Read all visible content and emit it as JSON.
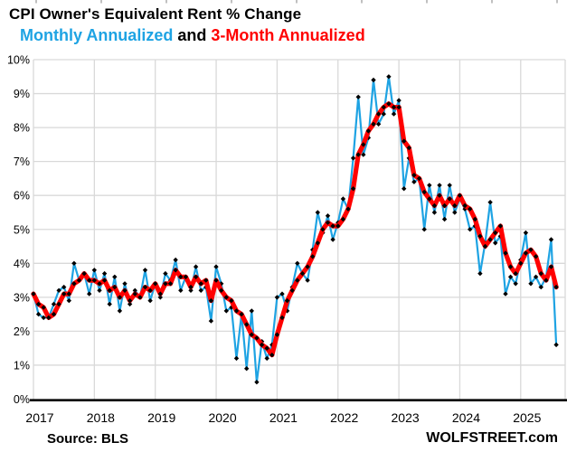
{
  "header": {
    "title": "CPI Owner's Equivalent Rent % Change",
    "subtitle": {
      "series1": "Monthly Annualized",
      "conjunction": "and",
      "series2": "3-Month Annualized"
    }
  },
  "footer": {
    "source": "Source: BLS",
    "brand": "WOLFSTREET.com"
  },
  "colors": {
    "monthly_line": "#1ea3e3",
    "three_month_line": "#ff0000",
    "marker": "#000000",
    "grid": "#d9d9d9",
    "axis": "#000000",
    "top_ticks": "#a6a6a6"
  },
  "chart_data": {
    "type": "line",
    "title": "CPI Owner's Equivalent Rent % Change",
    "x_unit": "month",
    "x_start": "2017-01",
    "x_end": "2025-08",
    "x_tick_labels": [
      "2017",
      "2018",
      "2019",
      "2020",
      "2021",
      "2022",
      "2023",
      "2024",
      "2025"
    ],
    "y_tick_labels": [
      "0%",
      "1%",
      "2%",
      "3%",
      "4%",
      "5%",
      "6%",
      "7%",
      "8%",
      "9%",
      "10%"
    ],
    "ylim": [
      0,
      10
    ],
    "grid": true,
    "legend_position": "in-subtitle",
    "series": [
      {
        "name": "Monthly Annualized",
        "color": "#1ea3e3",
        "marker": "diamond",
        "values": [
          3.1,
          2.5,
          2.4,
          2.4,
          2.8,
          3.2,
          3.3,
          2.9,
          4.0,
          3.5,
          3.7,
          3.1,
          3.8,
          3.2,
          3.7,
          2.8,
          3.6,
          2.6,
          3.4,
          2.8,
          3.2,
          3.0,
          3.8,
          2.9,
          3.4,
          3.0,
          3.7,
          3.5,
          4.1,
          3.2,
          3.6,
          3.2,
          3.9,
          3.2,
          3.3,
          2.3,
          3.9,
          3.4,
          2.6,
          2.7,
          1.2,
          2.5,
          0.9,
          2.6,
          0.5,
          1.7,
          1.2,
          1.6,
          3.0,
          3.1,
          2.6,
          3.3,
          4.0,
          3.7,
          3.5,
          4.4,
          5.5,
          4.9,
          5.4,
          4.7,
          5.2,
          5.9,
          5.6,
          7.1,
          8.9,
          7.2,
          7.7,
          9.4,
          8.1,
          8.4,
          9.5,
          8.4,
          8.8,
          6.2,
          7.1,
          6.4,
          6.5,
          5.0,
          6.3,
          5.5,
          6.3,
          5.3,
          6.3,
          5.5,
          5.9,
          5.6,
          5.0,
          5.1,
          3.7,
          4.6,
          5.8,
          4.6,
          4.8,
          3.1,
          3.6,
          3.4,
          4.1,
          4.9,
          3.4,
          3.6,
          3.3,
          3.6,
          4.7,
          1.6
        ]
      },
      {
        "name": "3-Month Annualized",
        "color": "#ff0000",
        "marker": "diamond",
        "values": [
          3.1,
          2.8,
          2.7,
          2.4,
          2.5,
          2.8,
          3.1,
          3.1,
          3.4,
          3.5,
          3.7,
          3.5,
          3.5,
          3.4,
          3.5,
          3.2,
          3.3,
          3.0,
          3.2,
          2.9,
          3.1,
          3.0,
          3.3,
          3.2,
          3.4,
          3.1,
          3.4,
          3.4,
          3.8,
          3.6,
          3.6,
          3.3,
          3.6,
          3.4,
          3.5,
          2.9,
          3.5,
          3.2,
          3.0,
          2.9,
          2.6,
          2.5,
          2.2,
          1.9,
          1.8,
          1.6,
          1.5,
          1.3,
          1.9,
          2.4,
          2.9,
          3.2,
          3.5,
          3.7,
          3.9,
          4.2,
          4.6,
          5.0,
          5.2,
          5.1,
          5.1,
          5.3,
          5.6,
          6.2,
          7.2,
          7.5,
          7.9,
          8.1,
          8.4,
          8.6,
          8.7,
          8.6,
          8.6,
          7.6,
          7.4,
          6.6,
          6.5,
          6.1,
          5.9,
          5.7,
          6.0,
          5.7,
          5.9,
          5.7,
          6.0,
          5.7,
          5.6,
          5.3,
          4.8,
          4.5,
          4.7,
          4.9,
          5.1,
          4.3,
          3.9,
          3.7,
          4.0,
          4.3,
          4.4,
          4.2,
          3.7,
          3.5,
          3.9,
          3.3
        ]
      }
    ]
  }
}
